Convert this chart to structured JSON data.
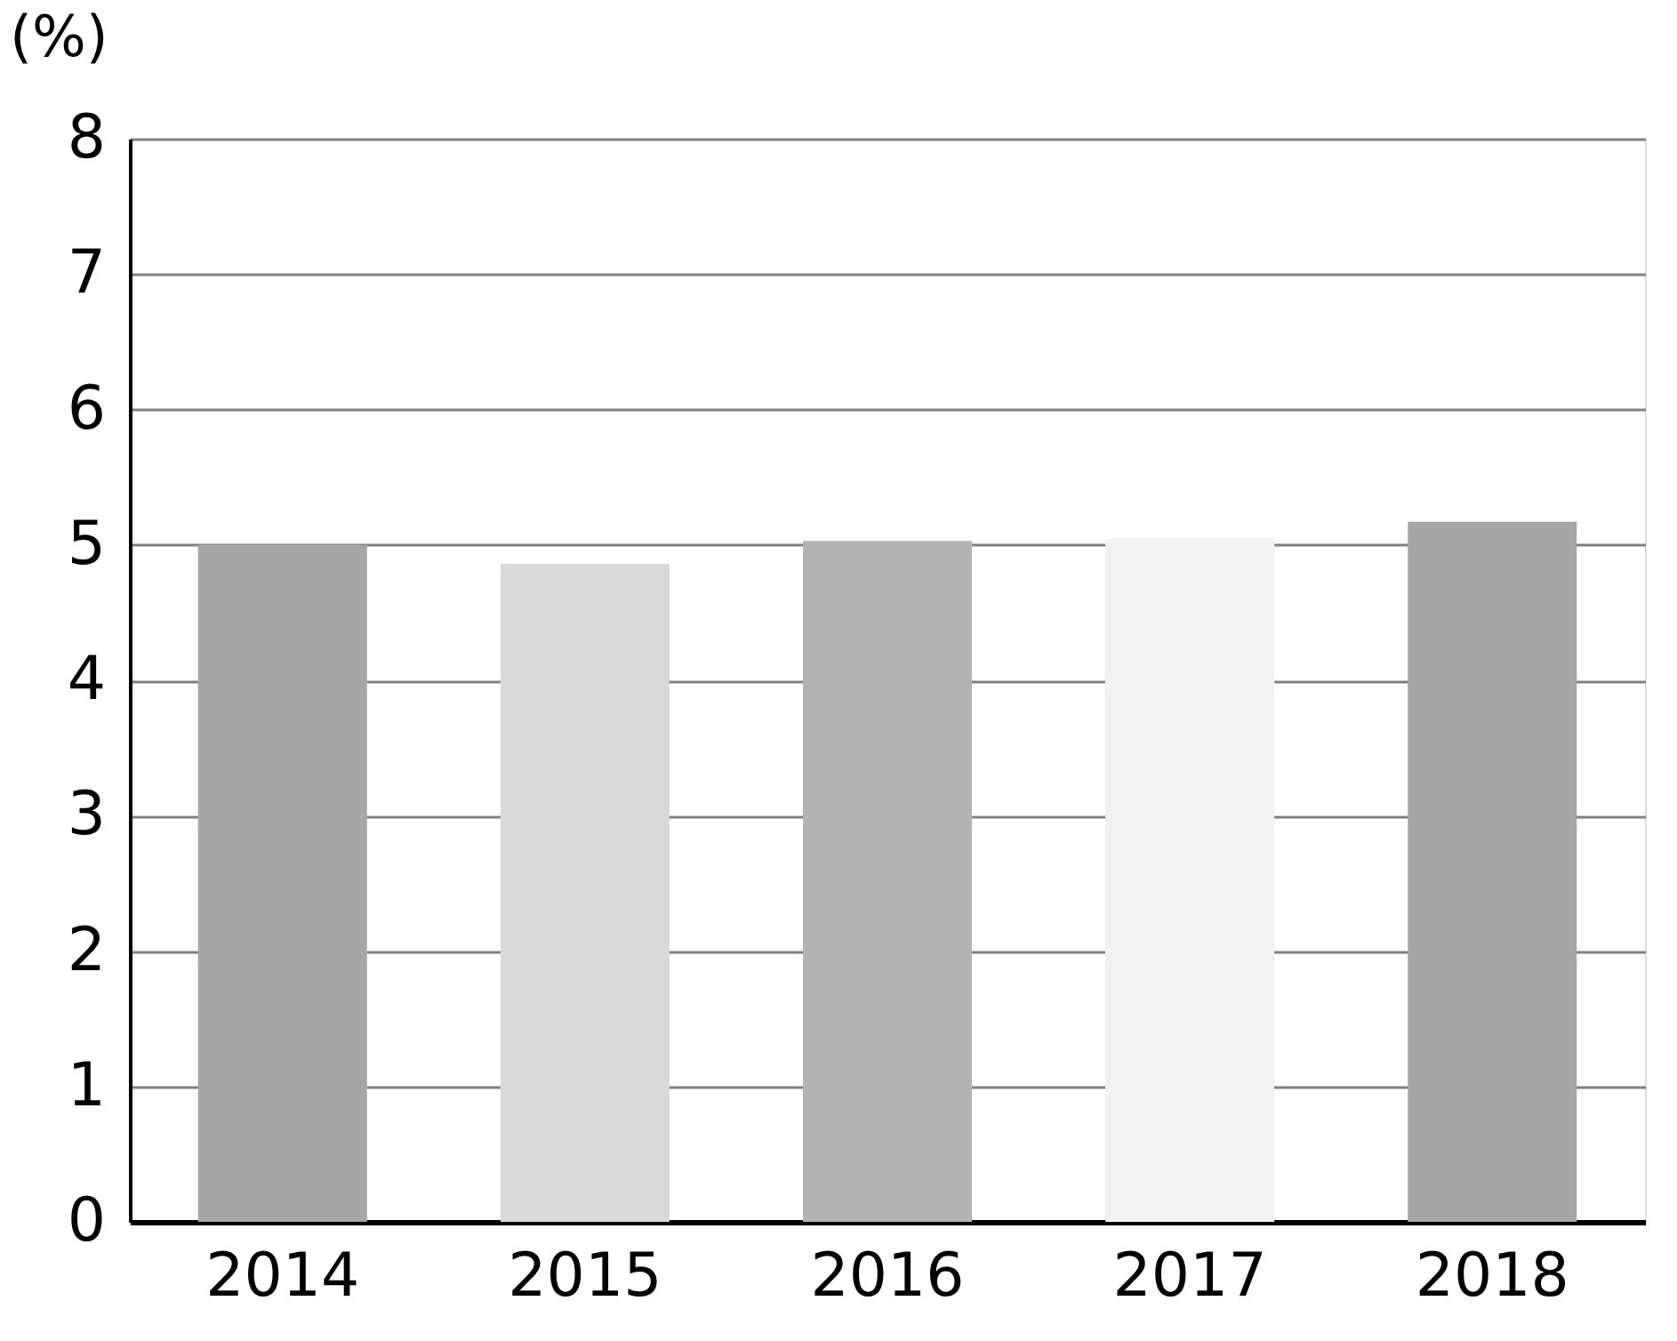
{
  "chart_data": {
    "type": "bar",
    "ylabel": "(%)",
    "categories": [
      "2014",
      "2015",
      "2016",
      "2017",
      "2018"
    ],
    "values": [
      5.0,
      4.86,
      5.03,
      5.05,
      5.17
    ],
    "colors": [
      "#a6a6a6",
      "#d9d9d9",
      "#b3b3b3",
      "#f2f2f2",
      "#a6a6a6"
    ],
    "ylim": [
      0,
      8
    ],
    "yticks": [
      0,
      1,
      2,
      3,
      4,
      5,
      6,
      7,
      8
    ],
    "grid": "y"
  }
}
